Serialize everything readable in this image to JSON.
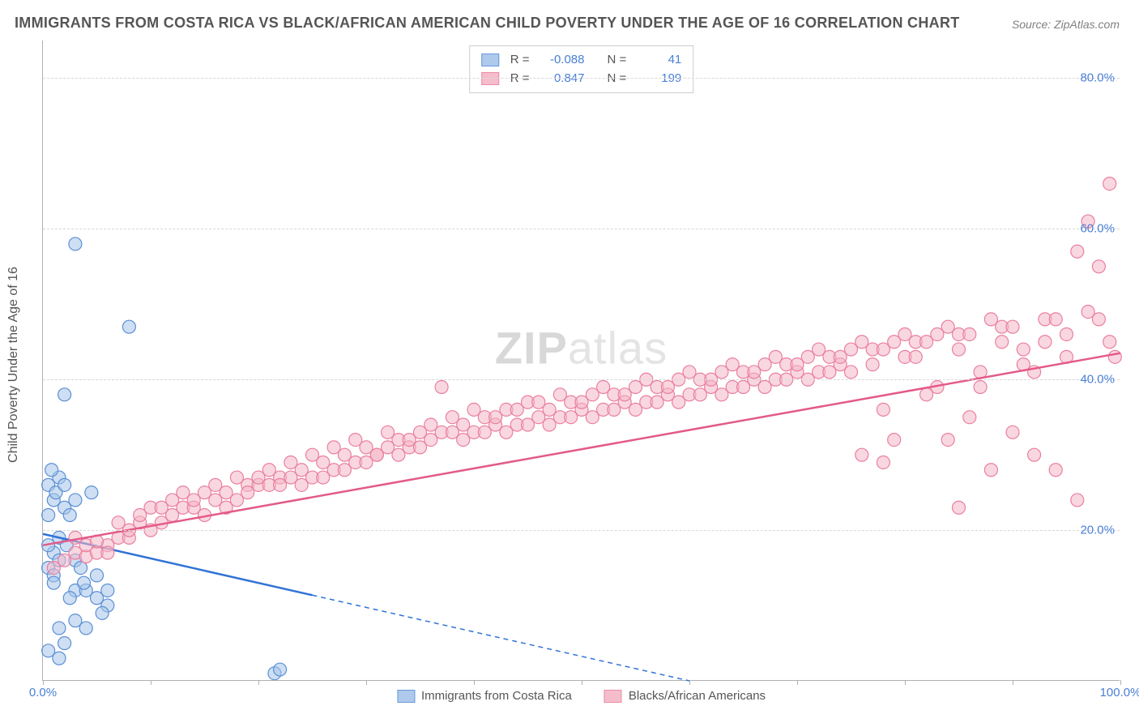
{
  "title": "IMMIGRANTS FROM COSTA RICA VS BLACK/AFRICAN AMERICAN CHILD POVERTY UNDER THE AGE OF 16 CORRELATION CHART",
  "source": "Source: ZipAtlas.com",
  "watermark_prefix": "ZIP",
  "watermark_suffix": "atlas",
  "y_axis_label": "Child Poverty Under the Age of 16",
  "chart": {
    "type": "scatter",
    "xlim": [
      0,
      100
    ],
    "ylim": [
      0,
      85
    ],
    "x_ticks": [
      0,
      10,
      20,
      30,
      40,
      50,
      60,
      70,
      80,
      90,
      100
    ],
    "x_tick_labels": {
      "0": "0.0%",
      "100": "100.0%"
    },
    "y_ticks": [
      20,
      40,
      60,
      80
    ],
    "y_tick_labels": {
      "20": "20.0%",
      "40": "40.0%",
      "60": "60.0%",
      "80": "80.0%"
    },
    "gridline_color": "#d8d8d8",
    "background_color": "#ffffff",
    "series": [
      {
        "name": "Immigrants from Costa Rica",
        "legend_label": "Immigrants from Costa Rica",
        "marker_fill": "#a6c4ea",
        "marker_stroke": "#5b8fd6",
        "marker_fill_opacity": 0.55,
        "marker_radius": 8,
        "line_color": "#3173d6",
        "R": "-0.088",
        "N": "41",
        "trend": {
          "x1": 0,
          "y1": 19.5,
          "x2": 60,
          "y2": 0,
          "solid_until_x": 25
        },
        "points": [
          [
            1,
            17
          ],
          [
            0.5,
            15
          ],
          [
            1,
            14
          ],
          [
            0.5,
            18
          ],
          [
            1.5,
            16
          ],
          [
            0.5,
            22
          ],
          [
            1,
            24
          ],
          [
            0.5,
            26
          ],
          [
            1.5,
            27
          ],
          [
            0.8,
            28
          ],
          [
            1.2,
            25
          ],
          [
            2,
            23
          ],
          [
            2.5,
            22
          ],
          [
            3,
            24
          ],
          [
            2,
            26
          ],
          [
            1.5,
            19
          ],
          [
            2.2,
            18
          ],
          [
            3,
            16
          ],
          [
            3.5,
            15
          ],
          [
            1,
            13
          ],
          [
            3,
            12
          ],
          [
            4,
            12
          ],
          [
            2.5,
            11
          ],
          [
            3.8,
            13
          ],
          [
            5,
            11
          ],
          [
            6,
            10
          ],
          [
            5.5,
            9
          ],
          [
            3,
            8
          ],
          [
            4,
            7
          ],
          [
            1.5,
            7
          ],
          [
            2,
            5
          ],
          [
            0.5,
            4
          ],
          [
            1.5,
            3
          ],
          [
            4.5,
            25
          ],
          [
            5,
            14
          ],
          [
            6,
            12
          ],
          [
            2,
            38
          ],
          [
            3,
            58
          ],
          [
            8,
            47
          ],
          [
            21.5,
            1
          ],
          [
            22,
            1.5
          ]
        ]
      },
      {
        "name": "Blacks/African Americans",
        "legend_label": "Blacks/African Americans",
        "marker_fill": "#f4b6c6",
        "marker_stroke": "#ea7fa0",
        "marker_fill_opacity": 0.55,
        "marker_radius": 8,
        "line_color": "#e35a8a",
        "R": "0.847",
        "N": "199",
        "trend": {
          "x1": 0,
          "y1": 18,
          "x2": 100,
          "y2": 43.5,
          "solid_until_x": 100
        },
        "points": [
          [
            1,
            15
          ],
          [
            2,
            16
          ],
          [
            3,
            17
          ],
          [
            4,
            16.5
          ],
          [
            5,
            17
          ],
          [
            3,
            19
          ],
          [
            4,
            18
          ],
          [
            6,
            18
          ],
          [
            7,
            19
          ],
          [
            5,
            18.5
          ],
          [
            6,
            17
          ],
          [
            8,
            19
          ],
          [
            7,
            21
          ],
          [
            9,
            21
          ],
          [
            8,
            20
          ],
          [
            10,
            20
          ],
          [
            9,
            22
          ],
          [
            11,
            21
          ],
          [
            10,
            23
          ],
          [
            12,
            22
          ],
          [
            11,
            23
          ],
          [
            13,
            23
          ],
          [
            12,
            24
          ],
          [
            14,
            23
          ],
          [
            13,
            25
          ],
          [
            15,
            22
          ],
          [
            14,
            24
          ],
          [
            16,
            24
          ],
          [
            15,
            25
          ],
          [
            17,
            25
          ],
          [
            16,
            26
          ],
          [
            18,
            24
          ],
          [
            17,
            23
          ],
          [
            19,
            26
          ],
          [
            18,
            27
          ],
          [
            20,
            26
          ],
          [
            19,
            25
          ],
          [
            21,
            26
          ],
          [
            20,
            27
          ],
          [
            22,
            27
          ],
          [
            21,
            28
          ],
          [
            23,
            27
          ],
          [
            22,
            26
          ],
          [
            24,
            28
          ],
          [
            23,
            29
          ],
          [
            25,
            27
          ],
          [
            24,
            26
          ],
          [
            26,
            29
          ],
          [
            25,
            30
          ],
          [
            27,
            28
          ],
          [
            26,
            27
          ],
          [
            28,
            30
          ],
          [
            27,
            31
          ],
          [
            29,
            29
          ],
          [
            28,
            28
          ],
          [
            30,
            31
          ],
          [
            29,
            32
          ],
          [
            31,
            30
          ],
          [
            30,
            29
          ],
          [
            32,
            31
          ],
          [
            31,
            30
          ],
          [
            33,
            32
          ],
          [
            32,
            33
          ],
          [
            34,
            31
          ],
          [
            33,
            30
          ],
          [
            35,
            33
          ],
          [
            34,
            32
          ],
          [
            36,
            32
          ],
          [
            35,
            31
          ],
          [
            37,
            33
          ],
          [
            36,
            34
          ],
          [
            38,
            33
          ],
          [
            37,
            39
          ],
          [
            39,
            34
          ],
          [
            38,
            35
          ],
          [
            40,
            33
          ],
          [
            39,
            32
          ],
          [
            41,
            35
          ],
          [
            40,
            36
          ],
          [
            42,
            34
          ],
          [
            41,
            33
          ],
          [
            43,
            36
          ],
          [
            42,
            35
          ],
          [
            44,
            34
          ],
          [
            43,
            33
          ],
          [
            45,
            37
          ],
          [
            44,
            36
          ],
          [
            46,
            35
          ],
          [
            45,
            34
          ],
          [
            47,
            36
          ],
          [
            46,
            37
          ],
          [
            48,
            35
          ],
          [
            47,
            34
          ],
          [
            49,
            37
          ],
          [
            48,
            38
          ],
          [
            50,
            36
          ],
          [
            49,
            35
          ],
          [
            51,
            38
          ],
          [
            50,
            37
          ],
          [
            52,
            36
          ],
          [
            51,
            35
          ],
          [
            53,
            38
          ],
          [
            52,
            39
          ],
          [
            54,
            37
          ],
          [
            53,
            36
          ],
          [
            55,
            39
          ],
          [
            54,
            38
          ],
          [
            56,
            37
          ],
          [
            55,
            36
          ],
          [
            57,
            39
          ],
          [
            56,
            40
          ],
          [
            58,
            38
          ],
          [
            57,
            37
          ],
          [
            59,
            40
          ],
          [
            58,
            39
          ],
          [
            60,
            38
          ],
          [
            59,
            37
          ],
          [
            61,
            40
          ],
          [
            60,
            41
          ],
          [
            62,
            39
          ],
          [
            61,
            38
          ],
          [
            63,
            41
          ],
          [
            62,
            40
          ],
          [
            64,
            39
          ],
          [
            63,
            38
          ],
          [
            65,
            41
          ],
          [
            64,
            42
          ],
          [
            66,
            40
          ],
          [
            65,
            39
          ],
          [
            67,
            42
          ],
          [
            66,
            41
          ],
          [
            68,
            40
          ],
          [
            67,
            39
          ],
          [
            69,
            42
          ],
          [
            68,
            43
          ],
          [
            70,
            41
          ],
          [
            69,
            40
          ],
          [
            71,
            43
          ],
          [
            70,
            42
          ],
          [
            72,
            41
          ],
          [
            71,
            40
          ],
          [
            73,
            43
          ],
          [
            72,
            44
          ],
          [
            74,
            42
          ],
          [
            73,
            41
          ],
          [
            75,
            44
          ],
          [
            74,
            43
          ],
          [
            76,
            30
          ],
          [
            75,
            41
          ],
          [
            77,
            44
          ],
          [
            76,
            45
          ],
          [
            78,
            36
          ],
          [
            77,
            42
          ],
          [
            79,
            45
          ],
          [
            78,
            44
          ],
          [
            80,
            43
          ],
          [
            79,
            32
          ],
          [
            81,
            45
          ],
          [
            80,
            46
          ],
          [
            82,
            38
          ],
          [
            81,
            43
          ],
          [
            83,
            46
          ],
          [
            82,
            45
          ],
          [
            84,
            32
          ],
          [
            83,
            39
          ],
          [
            85,
            46
          ],
          [
            84,
            47
          ],
          [
            86,
            35
          ],
          [
            85,
            44
          ],
          [
            87,
            41
          ],
          [
            86,
            46
          ],
          [
            88,
            28
          ],
          [
            87,
            39
          ],
          [
            89,
            47
          ],
          [
            88,
            48
          ],
          [
            90,
            33
          ],
          [
            89,
            45
          ],
          [
            91,
            42
          ],
          [
            90,
            47
          ],
          [
            92,
            30
          ],
          [
            91,
            44
          ],
          [
            93,
            48
          ],
          [
            92,
            41
          ],
          [
            94,
            28
          ],
          [
            93,
            45
          ],
          [
            95,
            43
          ],
          [
            94,
            48
          ],
          [
            96,
            24
          ],
          [
            95,
            46
          ],
          [
            97,
            49
          ],
          [
            96,
            57
          ],
          [
            98,
            48
          ],
          [
            97,
            61
          ],
          [
            99,
            45
          ],
          [
            98,
            55
          ],
          [
            99.5,
            43
          ],
          [
            99,
            66
          ],
          [
            85,
            23
          ],
          [
            78,
            29
          ]
        ]
      }
    ]
  },
  "colors": {
    "title_color": "#555555",
    "axis_text_color": "#4a7fd6",
    "border_color": "#b0b0b0"
  }
}
